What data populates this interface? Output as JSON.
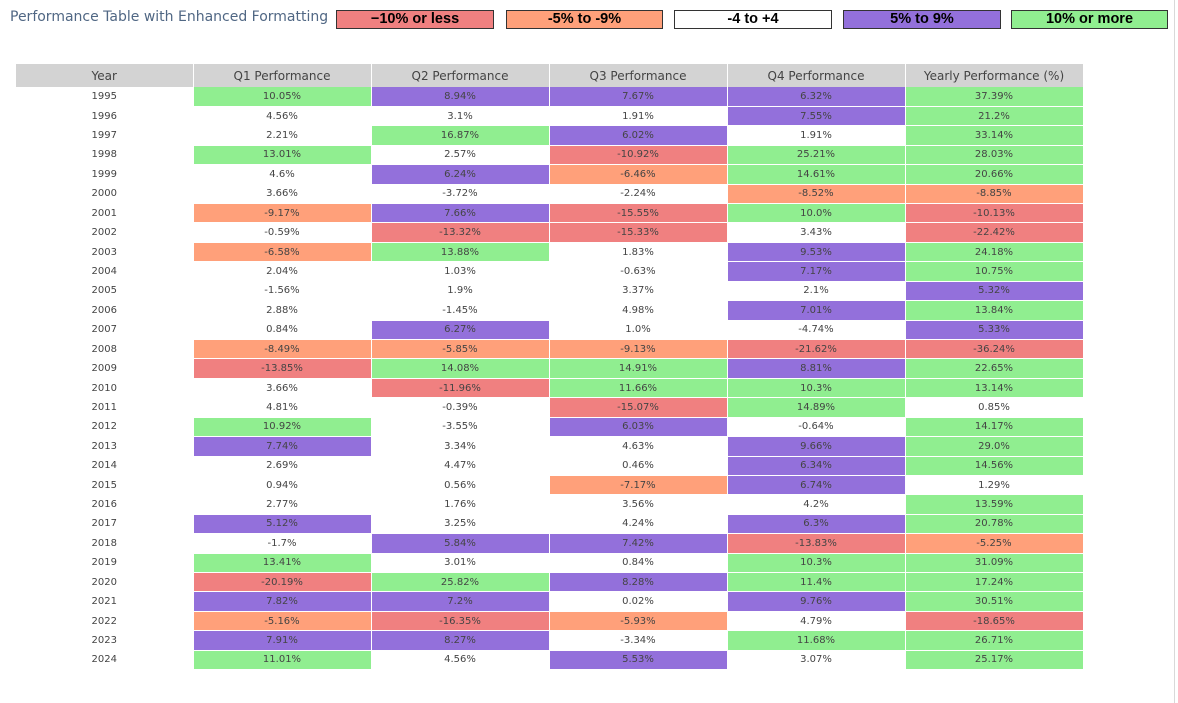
{
  "title": "Performance Table with Enhanced Formatting",
  "colors": {
    "strong_negative": "#f08080",
    "negative": "#ffa07a",
    "neutral": "#ffffff",
    "positive": "#9370db",
    "strong_positive": "#90ee90",
    "header_bg": "#d3d3d3",
    "text": "#444444"
  },
  "legend": [
    {
      "label": "−10% or less",
      "color": "#f08080"
    },
    {
      "label": "-5% to -9%",
      "color": "#ffa07a"
    },
    {
      "label": "-4 to +4",
      "color": "#ffffff"
    },
    {
      "label": "5% to 9%",
      "color": "#9370db"
    },
    {
      "label": "10% or more",
      "color": "#90ee90"
    }
  ],
  "chart_data": {
    "type": "table",
    "title": "Performance Table with Enhanced Formatting",
    "columns": [
      "Year",
      "Q1 Performance",
      "Q2 Performance",
      "Q3 Performance",
      "Q4 Performance",
      "Yearly Performance (%)"
    ],
    "rows": [
      [
        "1995",
        "10.05%",
        "8.94%",
        "7.67%",
        "6.32%",
        "37.39%"
      ],
      [
        "1996",
        "4.56%",
        "3.1%",
        "1.91%",
        "7.55%",
        "21.2%"
      ],
      [
        "1997",
        "2.21%",
        "16.87%",
        "6.02%",
        "1.91%",
        "33.14%"
      ],
      [
        "1998",
        "13.01%",
        "2.57%",
        "-10.92%",
        "25.21%",
        "28.03%"
      ],
      [
        "1999",
        "4.6%",
        "6.24%",
        "-6.46%",
        "14.61%",
        "20.66%"
      ],
      [
        "2000",
        "3.66%",
        "-3.72%",
        "-2.24%",
        "-8.52%",
        "-8.85%"
      ],
      [
        "2001",
        "-9.17%",
        "7.66%",
        "-15.55%",
        "10.0%",
        "-10.13%"
      ],
      [
        "2002",
        "-0.59%",
        "-13.32%",
        "-15.33%",
        "3.43%",
        "-22.42%"
      ],
      [
        "2003",
        "-6.58%",
        "13.88%",
        "1.83%",
        "9.53%",
        "24.18%"
      ],
      [
        "2004",
        "2.04%",
        "1.03%",
        "-0.63%",
        "7.17%",
        "10.75%"
      ],
      [
        "2005",
        "-1.56%",
        "1.9%",
        "3.37%",
        "2.1%",
        "5.32%"
      ],
      [
        "2006",
        "2.88%",
        "-1.45%",
        "4.98%",
        "7.01%",
        "13.84%"
      ],
      [
        "2007",
        "0.84%",
        "6.27%",
        "1.0%",
        "-4.74%",
        "5.33%"
      ],
      [
        "2008",
        "-8.49%",
        "-5.85%",
        "-9.13%",
        "-21.62%",
        "-36.24%"
      ],
      [
        "2009",
        "-13.85%",
        "14.08%",
        "14.91%",
        "8.81%",
        "22.65%"
      ],
      [
        "2010",
        "3.66%",
        "-11.96%",
        "11.66%",
        "10.3%",
        "13.14%"
      ],
      [
        "2011",
        "4.81%",
        "-0.39%",
        "-15.07%",
        "14.89%",
        "0.85%"
      ],
      [
        "2012",
        "10.92%",
        "-3.55%",
        "6.03%",
        "-0.64%",
        "14.17%"
      ],
      [
        "2013",
        "7.74%",
        "3.34%",
        "4.63%",
        "9.66%",
        "29.0%"
      ],
      [
        "2014",
        "2.69%",
        "4.47%",
        "0.46%",
        "6.34%",
        "14.56%"
      ],
      [
        "2015",
        "0.94%",
        "0.56%",
        "-7.17%",
        "6.74%",
        "1.29%"
      ],
      [
        "2016",
        "2.77%",
        "1.76%",
        "3.56%",
        "4.2%",
        "13.59%"
      ],
      [
        "2017",
        "5.12%",
        "3.25%",
        "4.24%",
        "6.3%",
        "20.78%"
      ],
      [
        "2018",
        "-1.7%",
        "5.84%",
        "7.42%",
        "-13.83%",
        "-5.25%"
      ],
      [
        "2019",
        "13.41%",
        "3.01%",
        "0.84%",
        "10.3%",
        "31.09%"
      ],
      [
        "2020",
        "-20.19%",
        "25.82%",
        "8.28%",
        "11.4%",
        "17.24%"
      ],
      [
        "2021",
        "7.82%",
        "7.2%",
        "0.02%",
        "9.76%",
        "30.51%"
      ],
      [
        "2022",
        "-5.16%",
        "-16.35%",
        "-5.93%",
        "4.79%",
        "-18.65%"
      ],
      [
        "2023",
        "7.91%",
        "8.27%",
        "-3.34%",
        "11.68%",
        "26.71%"
      ],
      [
        "2024",
        "11.01%",
        "4.56%",
        "5.53%",
        "3.07%",
        "25.17%"
      ]
    ]
  }
}
